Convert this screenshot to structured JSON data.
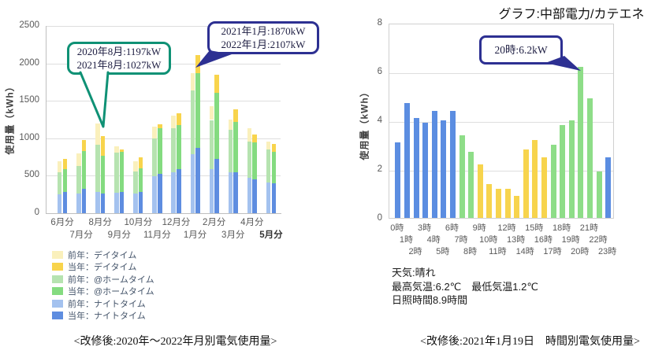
{
  "page": {
    "background": "#ffffff"
  },
  "chart_data": [
    {
      "id": "monthly-usage",
      "type": "bar",
      "stacked": true,
      "title": "<改修後:2020年～2022年月別電気使用量>",
      "ylabel": "使用量（kWh）",
      "ylim": [
        0,
        2500
      ],
      "yticks": [
        0,
        500,
        1000,
        1500,
        2000,
        2500
      ],
      "grid": true,
      "categories": [
        "6月分",
        "7月分",
        "8月分",
        "9月分",
        "10月分",
        "11月分",
        "12月分",
        "1月分",
        "2月分",
        "3月分",
        "4月分",
        "5月分"
      ],
      "series": [
        {
          "name": "前年：ナイトタイム",
          "year": "prev",
          "color": "#a4c2ef",
          "values": [
            250,
            265,
            285,
            275,
            265,
            495,
            545,
            790,
            590,
            543,
            468,
            408
          ]
        },
        {
          "name": "前年：@ホームタイム",
          "year": "prev",
          "color": "#b6e3b0",
          "values": [
            300,
            370,
            625,
            530,
            290,
            500,
            585,
            850,
            655,
            567,
            493,
            443
          ]
        },
        {
          "name": "前年：デイタイム",
          "year": "prev",
          "color": "#faf0bc",
          "values": [
            145,
            160,
            287,
            85,
            140,
            160,
            170,
            230,
            185,
            135,
            177,
            110
          ]
        },
        {
          "name": "当年：ナイトタイム",
          "year": "curr",
          "color": "#5e8de0",
          "values": [
            280,
            325,
            260,
            285,
            280,
            530,
            585,
            875,
            720,
            550,
            447,
            401
          ]
        },
        {
          "name": "当年：@ホームタイム",
          "year": "curr",
          "color": "#84db80",
          "values": [
            310,
            500,
            510,
            530,
            315,
            605,
            590,
            995,
            890,
            673,
            503,
            418
          ]
        },
        {
          "name": "当年：デイタイム",
          "year": "curr",
          "color": "#f8d44c",
          "values": [
            135,
            150,
            257,
            35,
            155,
            50,
            160,
            237,
            240,
            163,
            96,
            103
          ]
        }
      ],
      "legend": [
        "前年：デイタイム",
        "当年：デイタイム",
        "前年：@ホームタイム",
        "当年：@ホームタイム",
        "前年：ナイトタイム",
        "当年：ナイトタイム"
      ],
      "legend_position": "bottom-left",
      "callouts": [
        {
          "lines": [
            "2020年8月:1197kW",
            "2021年8月:1027kW"
          ],
          "border_color": "#0f9175",
          "points_to": "8月分"
        },
        {
          "lines": [
            "2021年1月:1870kW",
            "2022年1月:2107kW"
          ],
          "border_color": "#2d3092",
          "points_to": "1月分"
        }
      ]
    },
    {
      "id": "hourly-usage",
      "type": "bar",
      "header": "グラフ:中部電力/カテエネ",
      "title": "<改修後:2021年1月19日　時間別電気使用量>",
      "ylabel": "使用量（kWh）",
      "ylim": [
        0,
        8
      ],
      "yticks": [
        0,
        2,
        4,
        6,
        8
      ],
      "grid": true,
      "categories": [
        "0時",
        "1時",
        "2時",
        "3時",
        "4時",
        "5時",
        "6時",
        "7時",
        "8時",
        "9時",
        "10時",
        "11時",
        "12時",
        "13時",
        "14時",
        "15時",
        "16時",
        "17時",
        "18時",
        "19時",
        "20時",
        "21時",
        "22時",
        "23時"
      ],
      "values": [
        3.1,
        4.7,
        4.1,
        3.9,
        4.4,
        4.0,
        4.4,
        3.4,
        2.7,
        2.2,
        1.4,
        1.2,
        1.2,
        0.9,
        2.8,
        3.2,
        2.5,
        3.0,
        3.8,
        4.0,
        6.2,
        4.9,
        1.9,
        2.5
      ],
      "color_periods": [
        {
          "from": 0,
          "to": 6,
          "color": "#5b8de1",
          "label": "ナイトタイム"
        },
        {
          "from": 7,
          "to": 8,
          "color": "#8edd88",
          "label": "@ホームタイム"
        },
        {
          "from": 9,
          "to": 16,
          "color": "#f7d44d",
          "label": "デイタイム"
        },
        {
          "from": 17,
          "to": 22,
          "color": "#8edd88",
          "label": "@ホームタイム"
        },
        {
          "from": 23,
          "to": 23,
          "color": "#5b8de1",
          "label": "ナイトタイム"
        }
      ],
      "callout": {
        "text": "20時:6.2kW",
        "border_color": "#2d3092",
        "points_to": "20時"
      },
      "notes": [
        "天気:晴れ",
        "最高気温:6.2℃　最低気温1.2℃",
        "日照時間8.9時間"
      ]
    }
  ]
}
